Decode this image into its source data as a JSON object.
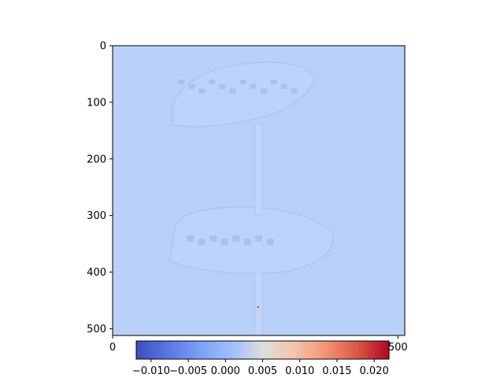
{
  "chart_data": {
    "type": "heatmap",
    "title": "",
    "xlabel": "",
    "ylabel": "",
    "image": {
      "rows": 512,
      "cols": 512,
      "background_value": 0.0015,
      "background_color": "#b9d0f9",
      "description_colormap": "coolwarm",
      "hot_pixel_value": 0.021
    },
    "x_axis": {
      "range": [
        0,
        512
      ],
      "ticks": [
        {
          "value": 0,
          "label": "0"
        },
        {
          "value": 500,
          "label": "500"
        }
      ]
    },
    "y_axis": {
      "range": [
        0,
        512
      ],
      "inverted": true,
      "ticks": [
        {
          "value": 0,
          "label": "0"
        },
        {
          "value": 100,
          "label": "100"
        },
        {
          "value": 200,
          "label": "200"
        },
        {
          "value": 300,
          "label": "300"
        },
        {
          "value": 400,
          "label": "400"
        },
        {
          "value": 500,
          "label": "500"
        }
      ]
    },
    "colorbar": {
      "orientation": "horizontal",
      "colormap": "coolwarm",
      "range": [
        -0.012,
        0.022
      ],
      "ticks": [
        {
          "value": -0.01,
          "label": "−0.010"
        },
        {
          "value": -0.005,
          "label": "−0.005"
        },
        {
          "value": 0.0,
          "label": "0.000"
        },
        {
          "value": 0.005,
          "label": "0.005"
        },
        {
          "value": 0.01,
          "label": "0.010"
        },
        {
          "value": 0.015,
          "label": "0.015"
        },
        {
          "value": 0.02,
          "label": "0.020"
        }
      ]
    },
    "grid": false,
    "colors": {
      "cmap_low": "#3b4cc0",
      "cmap_mid": "#dddddd",
      "cmap_high": "#b40426"
    }
  }
}
